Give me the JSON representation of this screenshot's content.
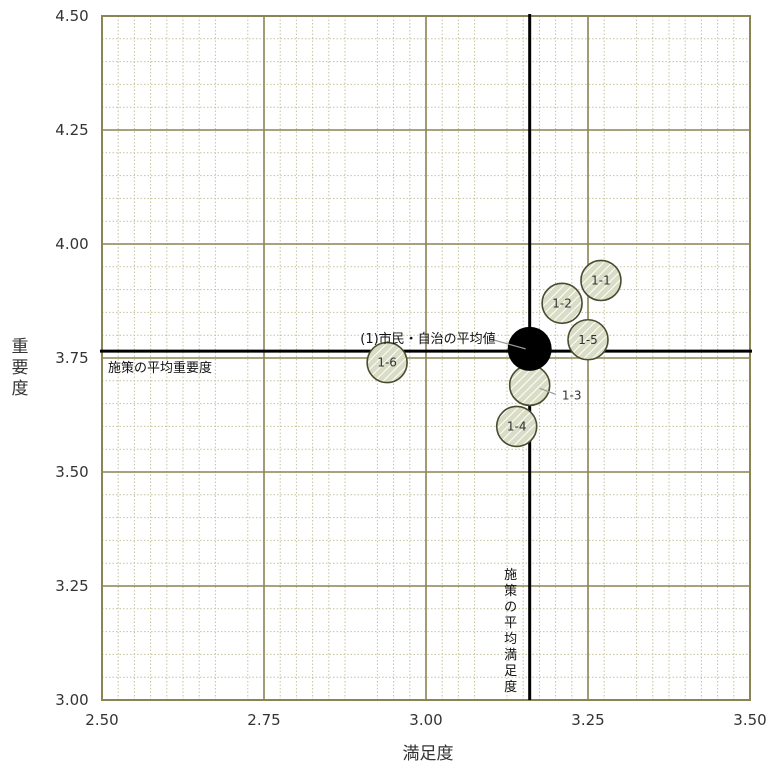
{
  "chart_data": {
    "type": "scatter",
    "xlabel": "満足度",
    "ylabel": "重要度",
    "xlim": [
      2.5,
      3.5
    ],
    "ylim": [
      3.0,
      4.5
    ],
    "x_ticks": [
      "2.50",
      "2.75",
      "3.00",
      "3.25",
      "3.50"
    ],
    "y_ticks": [
      "3.00",
      "3.25",
      "3.50",
      "3.75",
      "4.00",
      "4.25",
      "4.50"
    ],
    "grid": true,
    "average_lines": {
      "importance": {
        "value": 3.765,
        "label": "施策の平均重要度"
      },
      "satisfaction": {
        "value": 3.16,
        "label": "施策の平均満足度"
      }
    },
    "points": [
      {
        "label": "1-1",
        "x": 3.27,
        "y": 3.92
      },
      {
        "label": "1-2",
        "x": 3.21,
        "y": 3.87
      },
      {
        "label": "1-5",
        "x": 3.25,
        "y": 3.79
      },
      {
        "label": "1-3",
        "x": 3.16,
        "y": 3.69
      },
      {
        "label": "1-4",
        "x": 3.14,
        "y": 3.6
      },
      {
        "label": "1-6",
        "x": 2.94,
        "y": 3.74
      }
    ],
    "average_point": {
      "label": "(1)市民・自治の平均値",
      "x": 3.16,
      "y": 3.77
    },
    "colors": {
      "frame": "#8b8454",
      "minor_grid": "#c7c29b",
      "average_line": "#000000",
      "bubble_fill": "#d9ddc5",
      "bubble_hatch": "#ffffff",
      "bubble_stroke": "#4b4b2f",
      "average_point": "#000000"
    }
  }
}
